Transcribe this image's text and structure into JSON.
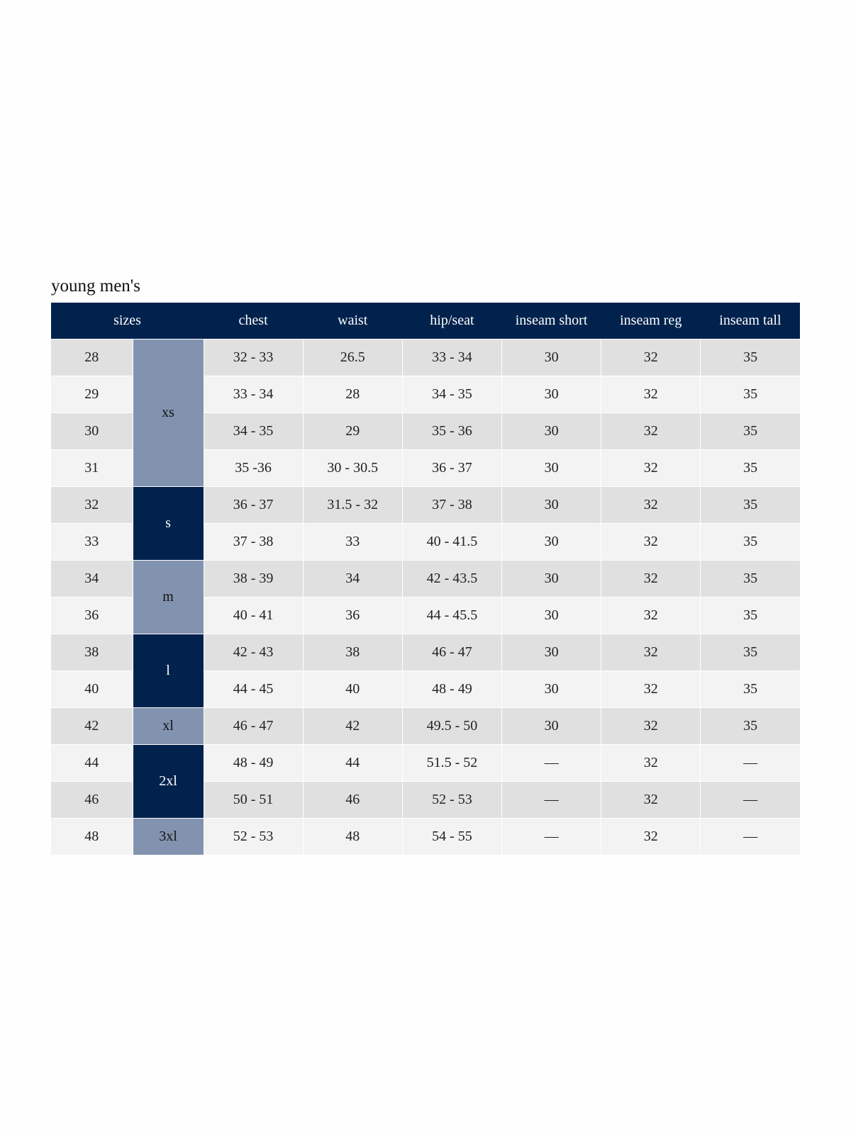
{
  "title": "young men's",
  "colors": {
    "header": "#00224d",
    "alpha_light": "#8293b0",
    "alpha_dark": "#00224d",
    "row_odd": "#e0e0e0",
    "row_even": "#f3f3f3"
  },
  "headers": [
    "sizes",
    "chest",
    "waist",
    "hip/seat",
    "inseam short",
    "inseam reg",
    "inseam tall"
  ],
  "alpha_sizes": [
    {
      "label": "xs",
      "rows": 4,
      "shade": "light"
    },
    {
      "label": "s",
      "rows": 2,
      "shade": "dark"
    },
    {
      "label": "m",
      "rows": 2,
      "shade": "light"
    },
    {
      "label": "l",
      "rows": 2,
      "shade": "dark"
    },
    {
      "label": "xl",
      "rows": 1,
      "shade": "light"
    },
    {
      "label": "2xl",
      "rows": 2,
      "shade": "dark"
    },
    {
      "label": "3xl",
      "rows": 1,
      "shade": "light"
    }
  ],
  "rows": [
    [
      "28",
      "32 - 33",
      "26.5",
      "33 - 34",
      "30",
      "32",
      "35"
    ],
    [
      "29",
      "33 - 34",
      "28",
      "34 - 35",
      "30",
      "32",
      "35"
    ],
    [
      "30",
      "34 - 35",
      "29",
      "35 - 36",
      "30",
      "32",
      "35"
    ],
    [
      "31",
      "35 -36",
      "30 - 30.5",
      "36 - 37",
      "30",
      "32",
      "35"
    ],
    [
      "32",
      "36 - 37",
      "31.5 - 32",
      "37 - 38",
      "30",
      "32",
      "35"
    ],
    [
      "33",
      "37 - 38",
      "33",
      "40 - 41.5",
      "30",
      "32",
      "35"
    ],
    [
      "34",
      "38 - 39",
      "34",
      "42 - 43.5",
      "30",
      "32",
      "35"
    ],
    [
      "36",
      "40 - 41",
      "36",
      "44 - 45.5",
      "30",
      "32",
      "35"
    ],
    [
      "38",
      "42 - 43",
      "38",
      "46 - 47",
      "30",
      "32",
      "35"
    ],
    [
      "40",
      "44 - 45",
      "40",
      "48 - 49",
      "30",
      "32",
      "35"
    ],
    [
      "42",
      "46 - 47",
      "42",
      "49.5 - 50",
      "30",
      "32",
      "35"
    ],
    [
      "44",
      "48 - 49",
      "44",
      "51.5 - 52",
      "—",
      "32",
      "—"
    ],
    [
      "46",
      "50 - 51",
      "46",
      "52 - 53",
      "—",
      "32",
      "—"
    ],
    [
      "48",
      "52 - 53",
      "48",
      "54 - 55",
      "—",
      "32",
      "—"
    ]
  ]
}
